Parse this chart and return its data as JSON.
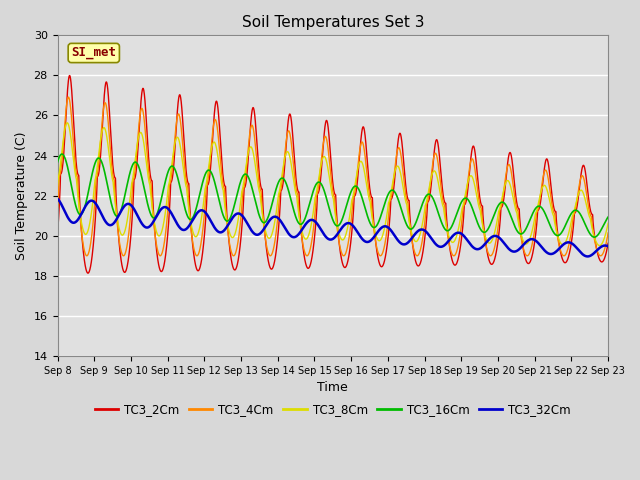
{
  "title": "Soil Temperatures Set 3",
  "xlabel": "Time",
  "ylabel": "Soil Temperature (C)",
  "ylim": [
    14,
    30
  ],
  "yticks": [
    14,
    16,
    18,
    20,
    22,
    24,
    26,
    28,
    30
  ],
  "xtick_labels": [
    "Sep 8",
    "Sep 9",
    "Sep 10",
    "Sep 11",
    "Sep 12",
    "Sep 13",
    "Sep 14",
    "Sep 15",
    "Sep 16",
    "Sep 17",
    "Sep 18",
    "Sep 19",
    "Sep 20",
    "Sep 21",
    "Sep 22",
    "Sep 23"
  ],
  "series": {
    "TC3_2Cm": {
      "color": "#dd0000",
      "lw": 1.0
    },
    "TC3_4Cm": {
      "color": "#ff8800",
      "lw": 1.0
    },
    "TC3_8Cm": {
      "color": "#dddd00",
      "lw": 1.0
    },
    "TC3_16Cm": {
      "color": "#00bb00",
      "lw": 1.2
    },
    "TC3_32Cm": {
      "color": "#0000cc",
      "lw": 1.8
    }
  },
  "annotation": {
    "text": "SI_met",
    "fontsize": 9,
    "color": "#880000",
    "bg": "#ffffaa",
    "border": "#888800"
  },
  "bg_color": "#e0e0e0",
  "grid_color": "#ffffff",
  "title_fontsize": 11,
  "fig_bg": "#d8d8d8"
}
